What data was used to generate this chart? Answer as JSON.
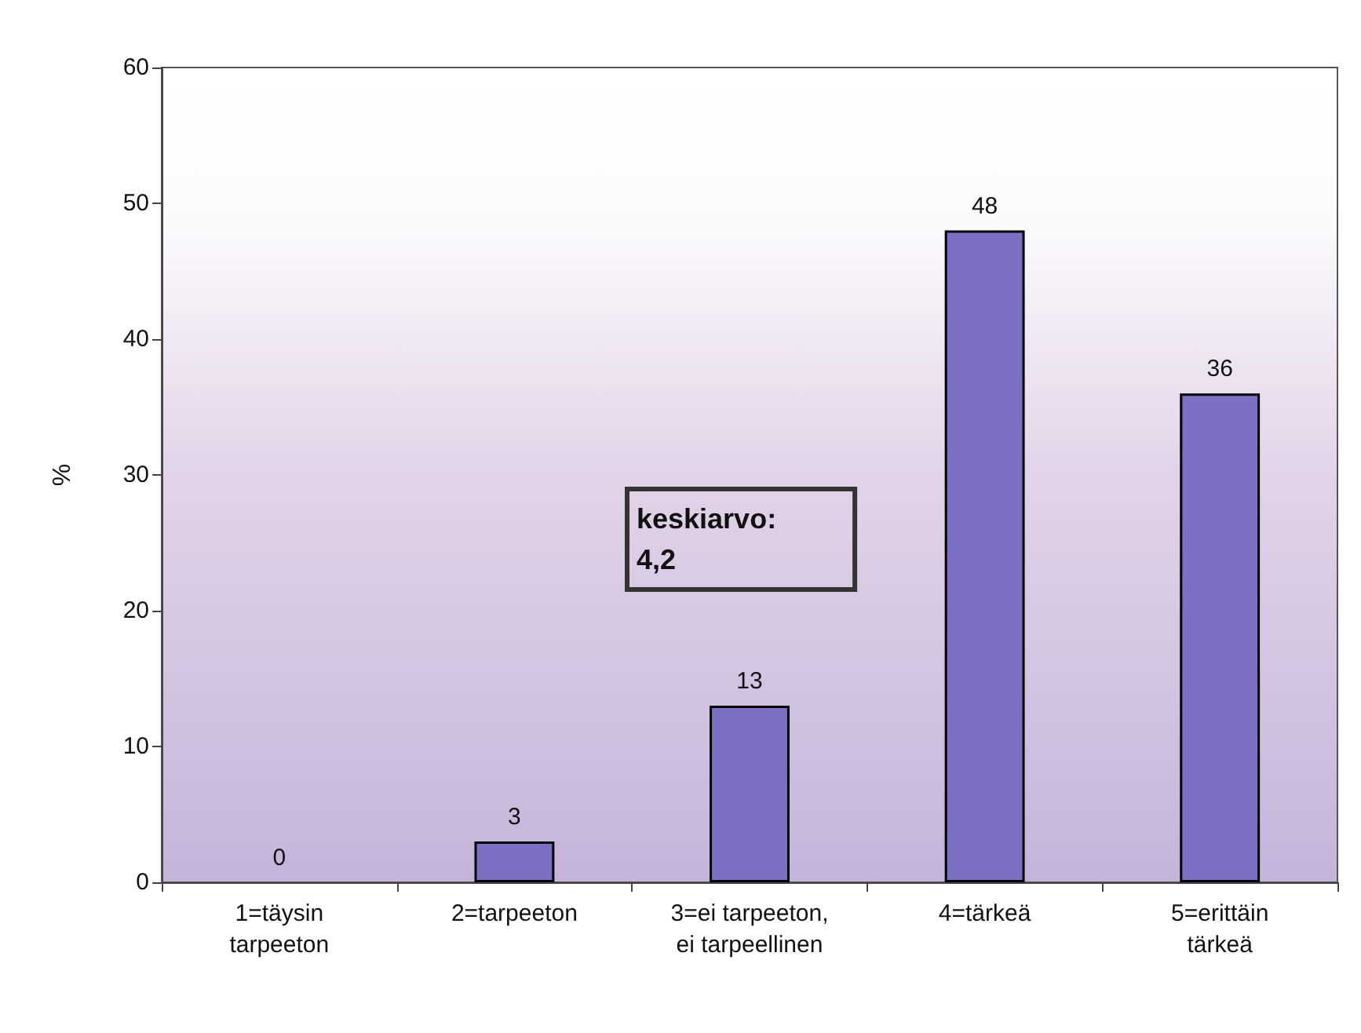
{
  "chart_data": {
    "type": "bar",
    "ylabel": "%",
    "categories": [
      "1=täysin\ntarpeeton",
      "2=tarpeeton",
      "3=ei tarpeeton,\nei tarpeellinen",
      "4=tärkeä",
      "5=erittäin\ntärkeä"
    ],
    "values": [
      0,
      3,
      13,
      48,
      36
    ],
    "color": "#7b70c4",
    "ylim": [
      0,
      60
    ],
    "yticks": [
      0,
      10,
      20,
      30,
      40,
      50,
      60
    ],
    "grid": false,
    "data_labels": true,
    "annotations": [
      "keskiarvo:\n4,2"
    ]
  }
}
